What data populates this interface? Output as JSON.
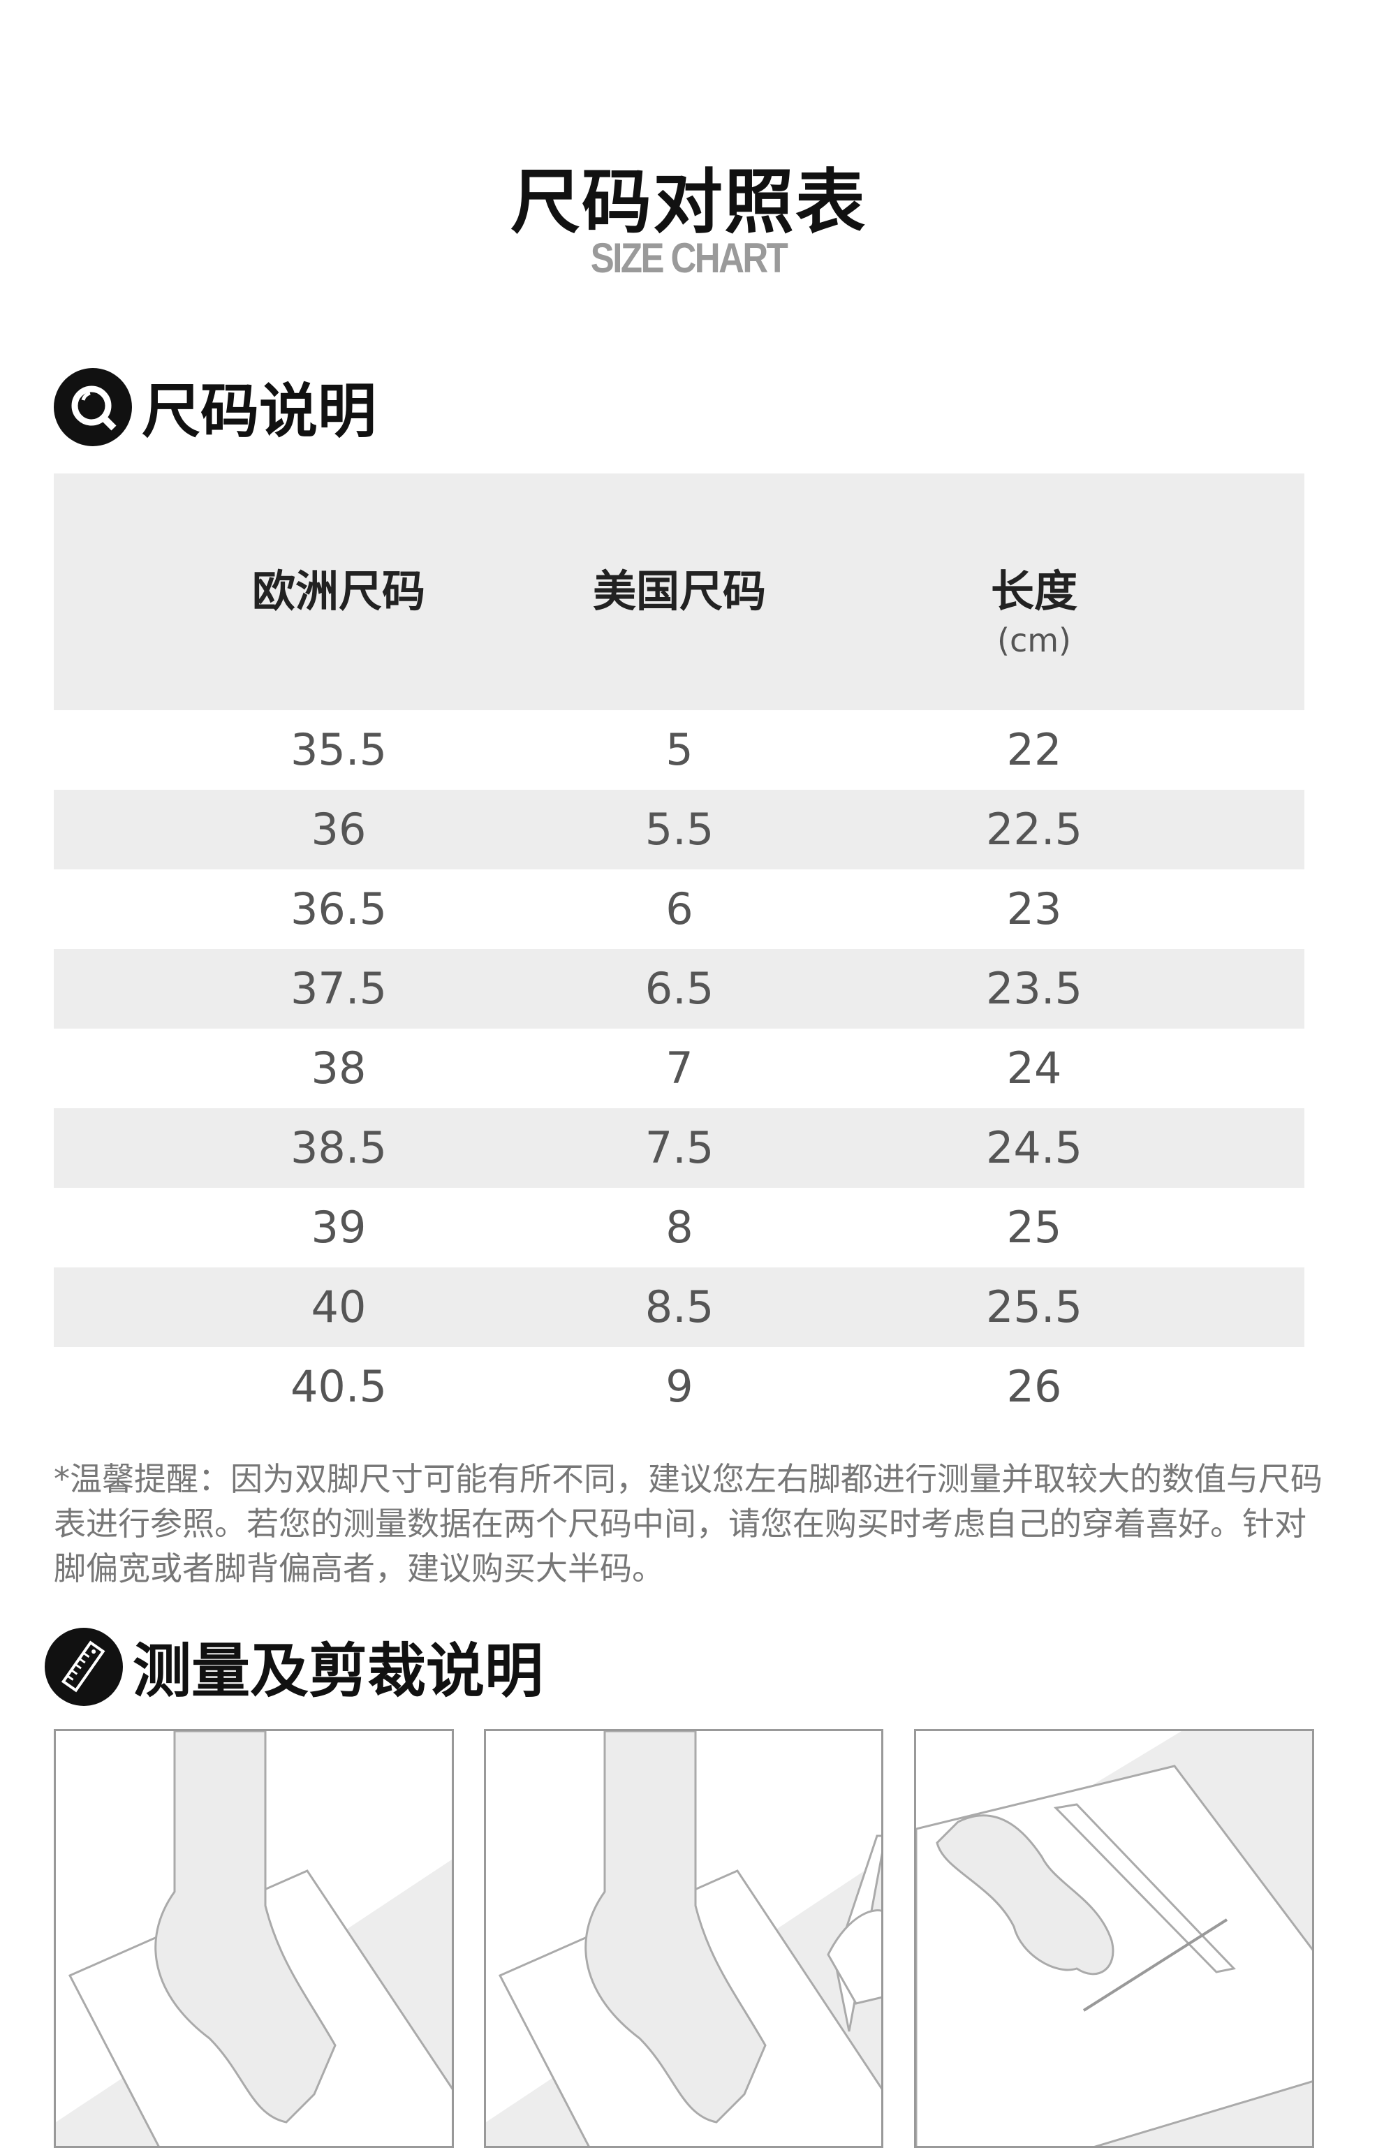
{
  "header": {
    "title": "尺码对照表",
    "subtitle": "SIZE CHART"
  },
  "size_section": {
    "heading": "尺码说明",
    "icon": "magnifier-icon",
    "columns": [
      {
        "label": "欧洲尺码",
        "unit": ""
      },
      {
        "label": "美国尺码",
        "unit": ""
      },
      {
        "label": "长度",
        "unit": "(cm)"
      }
    ],
    "rows": [
      [
        "35.5",
        "5",
        "22"
      ],
      [
        "36",
        "5.5",
        "22.5"
      ],
      [
        "36.5",
        "6",
        "23"
      ],
      [
        "37.5",
        "6.5",
        "23.5"
      ],
      [
        "38",
        "7",
        "24"
      ],
      [
        "38.5",
        "7.5",
        "24.5"
      ],
      [
        "39",
        "8",
        "25"
      ],
      [
        "40",
        "8.5",
        "25.5"
      ],
      [
        "40.5",
        "9",
        "26"
      ]
    ],
    "note": "*温馨提醒：因为双脚尺寸可能有所不同，建议您左右脚都进行测量并取较大的数值与尺码表进行参照。若您的测量数据在两个尺码中间，请您在购买时考虑自己的穿着喜好。针对脚偏宽或者脚背偏高者，建议购买大半码。"
  },
  "measure_section": {
    "heading": "测量及剪裁说明",
    "icon": "ruler-icon",
    "panels": [
      "foot-on-paper-illustration",
      "trace-foot-illustration",
      "measure-footprint-illustration"
    ]
  },
  "colors": {
    "row_alt": "#ededed",
    "text_gray": "#555555",
    "subtitle_gray": "#9a9a9a"
  }
}
